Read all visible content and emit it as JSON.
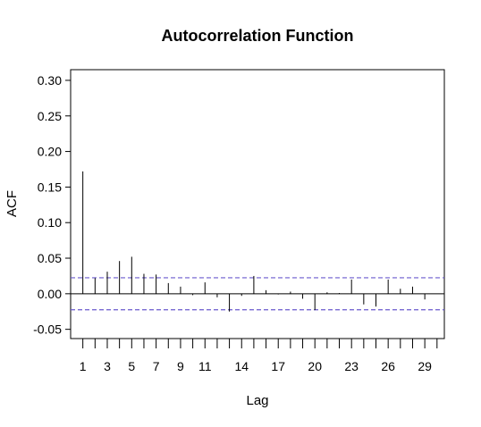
{
  "chart_data": {
    "type": "bar",
    "title": "Autocorrelation Function",
    "xlabel": "Lag",
    "ylabel": "ACF",
    "lags": [
      1,
      2,
      3,
      4,
      5,
      6,
      7,
      8,
      9,
      10,
      11,
      12,
      13,
      14,
      15,
      16,
      17,
      18,
      19,
      20,
      21,
      22,
      23,
      24,
      25,
      26,
      27,
      28,
      29,
      30
    ],
    "values": [
      0.172,
      0.022,
      0.031,
      0.046,
      0.052,
      0.028,
      0.027,
      0.015,
      0.01,
      -0.002,
      0.016,
      -0.005,
      -0.025,
      -0.003,
      0.025,
      0.005,
      -0.001,
      0.003,
      -0.007,
      -0.023,
      0.002,
      0.001,
      0.02,
      -0.015,
      -0.018,
      0.02,
      0.007,
      0.01,
      -0.008,
      0
    ],
    "conf_bound": 0.0225,
    "xlim": [
      0,
      30.6
    ],
    "ylim": [
      -0.063,
      0.315
    ],
    "x_ticks": [
      1,
      2,
      3,
      4,
      5,
      6,
      7,
      8,
      9,
      10,
      11,
      12,
      13,
      14,
      15,
      16,
      17,
      18,
      19,
      20,
      21,
      22,
      23,
      24,
      25,
      26,
      27,
      28,
      29,
      30
    ],
    "x_tick_labels": [
      "1",
      "3",
      "5",
      "7",
      "9",
      "11",
      "14",
      "17",
      "20",
      "23",
      "26",
      "29"
    ],
    "x_tick_label_lags": [
      1,
      3,
      5,
      7,
      9,
      11,
      14,
      17,
      20,
      23,
      26,
      29
    ],
    "y_ticks": [
      -0.05,
      0.0,
      0.05,
      0.1,
      0.15,
      0.2,
      0.25,
      0.3
    ],
    "y_tick_labels": [
      "-0.05",
      "0.00",
      "0.05",
      "0.10",
      "0.15",
      "0.20",
      "0.25",
      "0.30"
    ],
    "grid": false,
    "colors": {
      "bars": "#000000",
      "conf_lines": "#6a5acd",
      "zero_line": "#000000"
    }
  }
}
